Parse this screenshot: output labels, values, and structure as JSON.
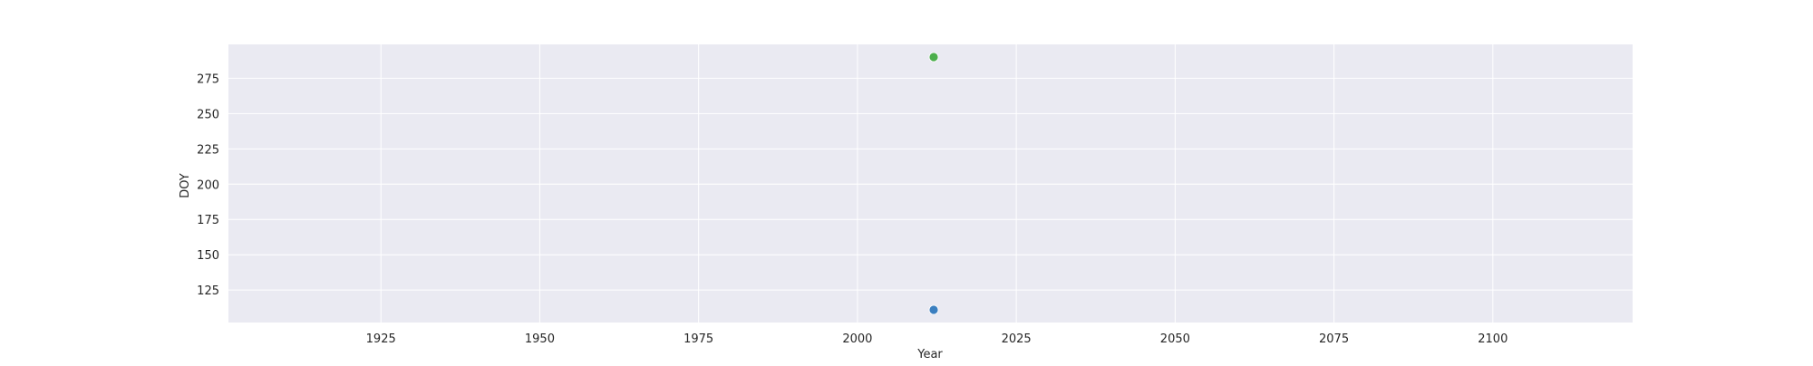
{
  "chart_data": {
    "type": "scatter",
    "title": "",
    "xlabel": "Year",
    "ylabel": "DOY",
    "xlim": [
      1901,
      2122
    ],
    "ylim": [
      102,
      299
    ],
    "xticks": [
      1925,
      1950,
      1975,
      2000,
      2025,
      2050,
      2075,
      2100
    ],
    "yticks": [
      125,
      150,
      175,
      200,
      225,
      250,
      275
    ],
    "grid": true,
    "legend": "none",
    "colors": {
      "plot_background": "#eaeaf2",
      "grid": "#ffffff",
      "text": "#262626"
    },
    "series": [
      {
        "color": "#3b7fc0",
        "points": [
          {
            "x": 2012,
            "y": 111
          }
        ]
      },
      {
        "color": "#4cae4c",
        "points": [
          {
            "x": 2012,
            "y": 290
          }
        ]
      }
    ]
  }
}
